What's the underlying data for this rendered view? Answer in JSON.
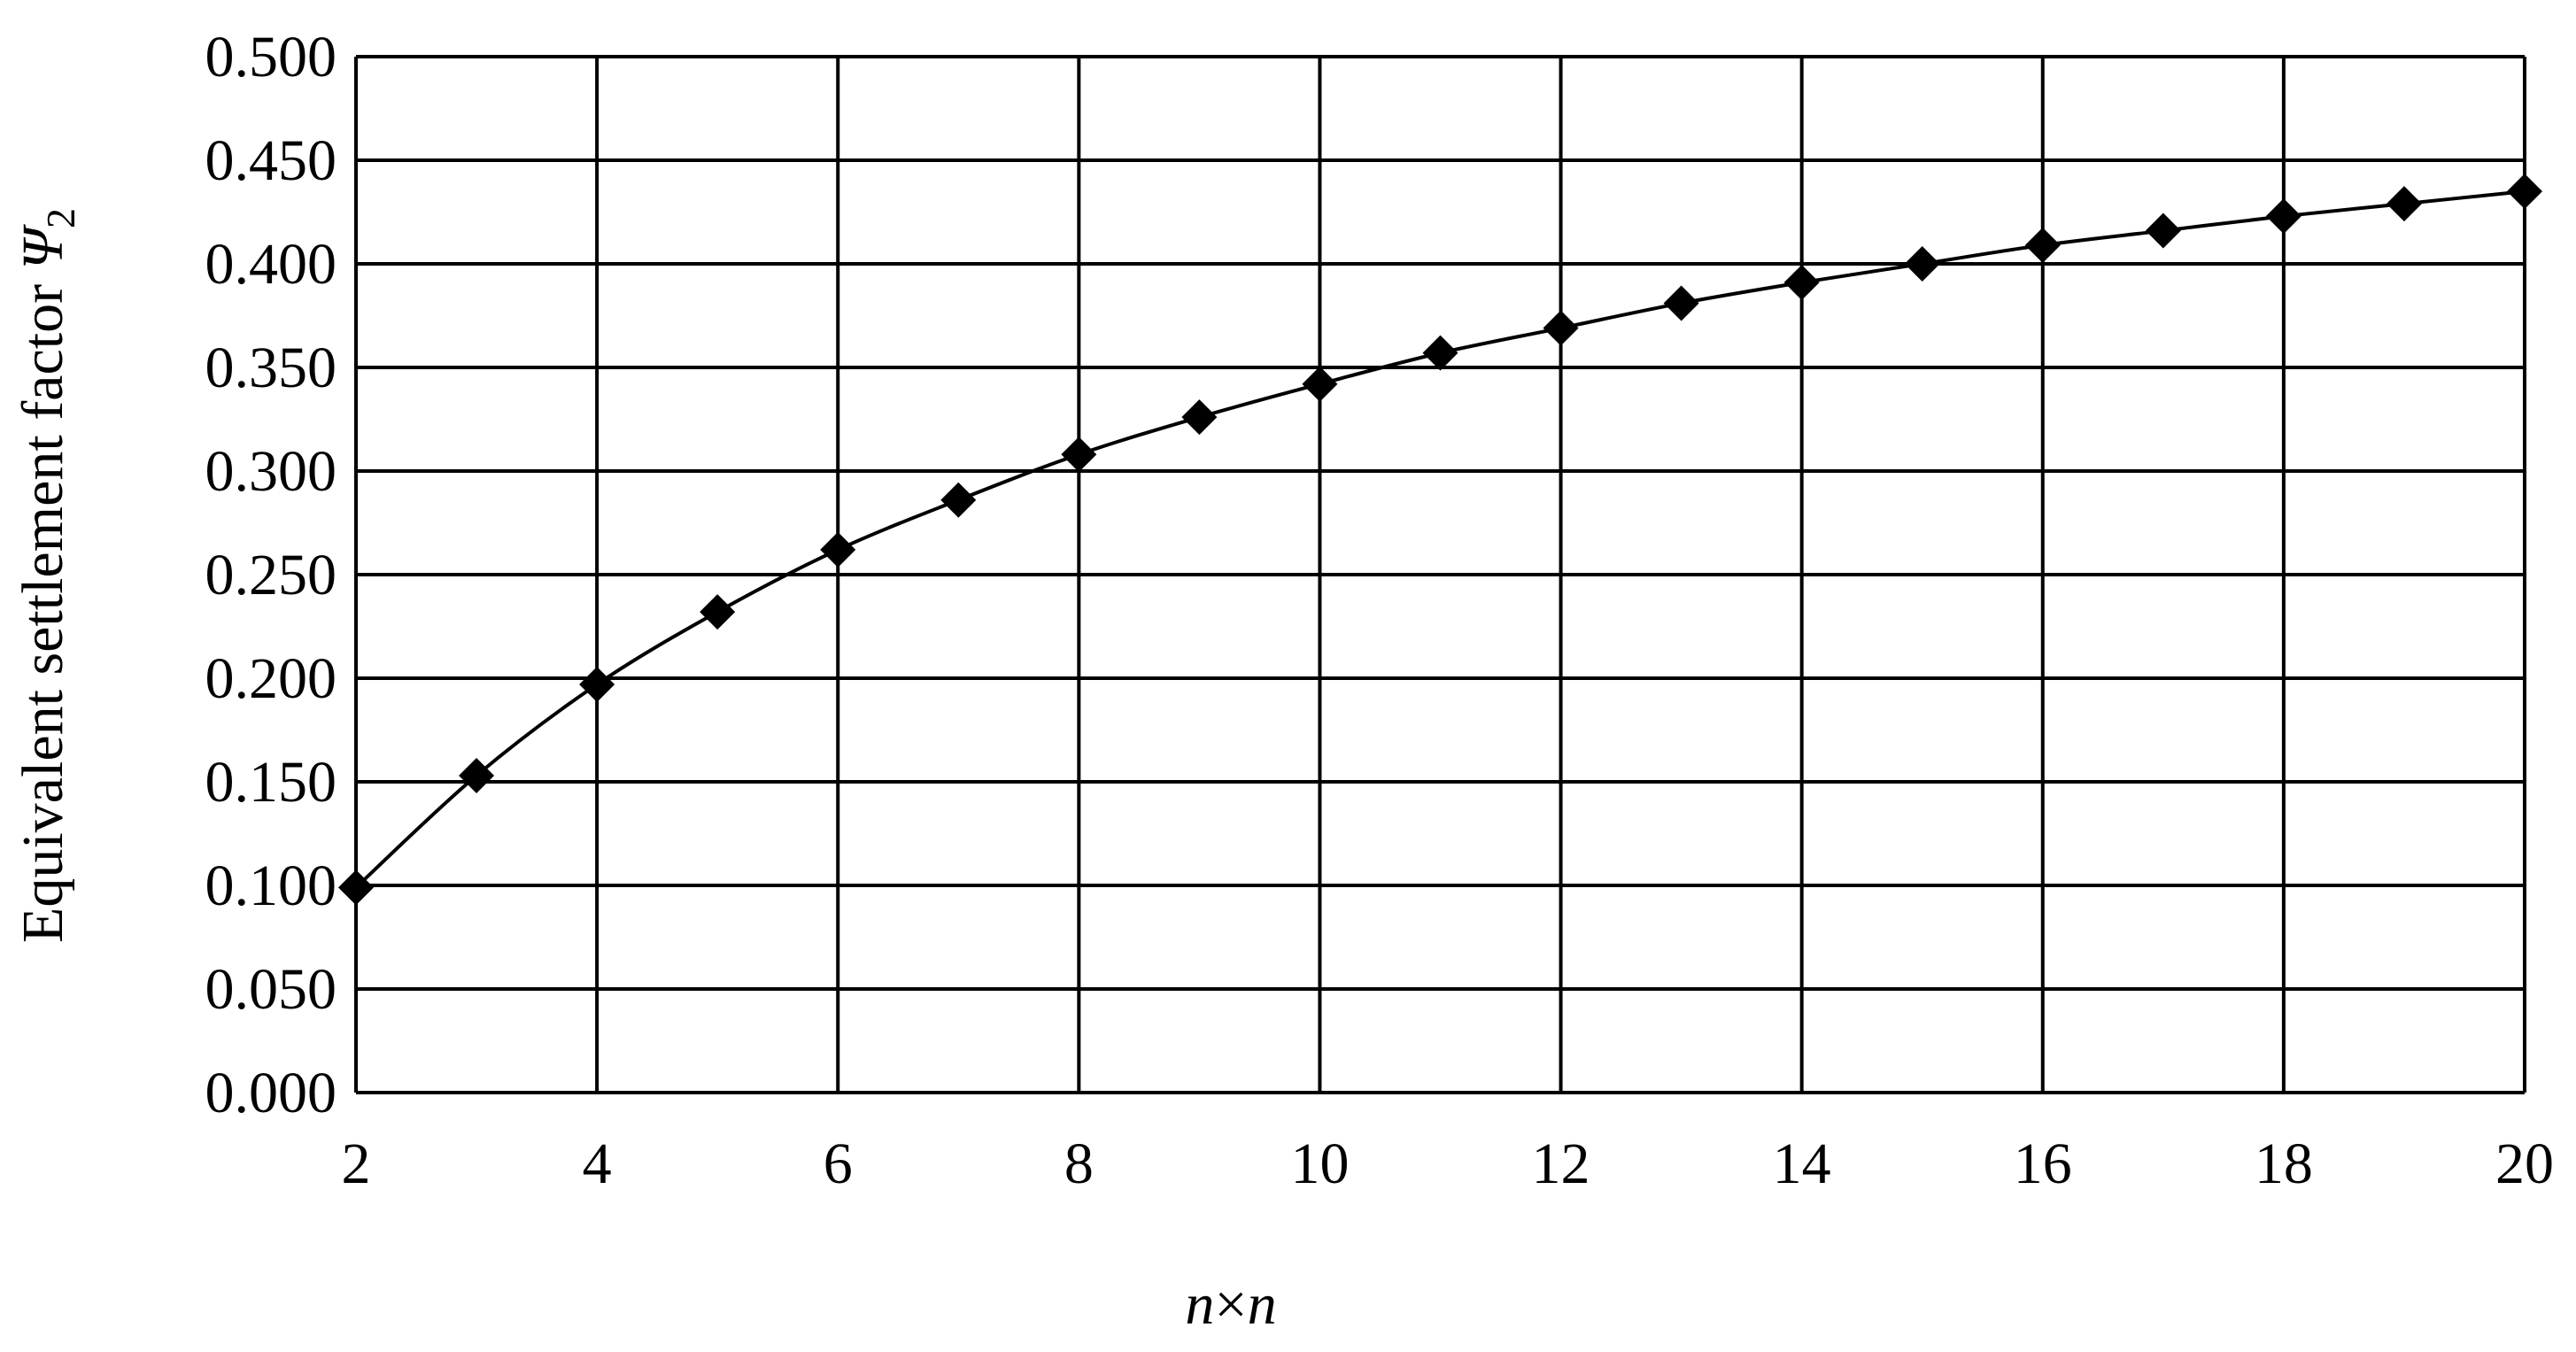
{
  "chart_data": {
    "type": "line",
    "title": "",
    "xlabel": "n×n",
    "ylabel": "Equivalent settlement factor Ψ2",
    "xlabel_parts": {
      "a": "n",
      "times": "×",
      "b": "n"
    },
    "ylabel_parts": {
      "text": "Equivalent settlement factor ",
      "symbol": "Ψ",
      "subscript": "2"
    },
    "xlim": [
      2,
      20
    ],
    "ylim": [
      0,
      0.5
    ],
    "x_ticks": [
      "2",
      "4",
      "6",
      "8",
      "10",
      "12",
      "14",
      "16",
      "18",
      "20"
    ],
    "y_ticks": [
      "0.000",
      "0.050",
      "0.100",
      "0.150",
      "0.200",
      "0.250",
      "0.300",
      "0.350",
      "0.400",
      "0.450",
      "0.500"
    ],
    "grid": true,
    "x_grid_step": 2,
    "y_grid_step": 0.05,
    "series": [
      {
        "marker": "diamond",
        "color": "#000000",
        "x": [
          2,
          3,
          4,
          5,
          6,
          7,
          8,
          9,
          10,
          11,
          12,
          13,
          14,
          15,
          16,
          17,
          18,
          19,
          20
        ],
        "y": [
          0.099,
          0.153,
          0.197,
          0.232,
          0.262,
          0.286,
          0.308,
          0.326,
          0.342,
          0.357,
          0.369,
          0.381,
          0.391,
          0.4,
          0.409,
          0.416,
          0.423,
          0.429,
          0.435
        ]
      }
    ]
  }
}
